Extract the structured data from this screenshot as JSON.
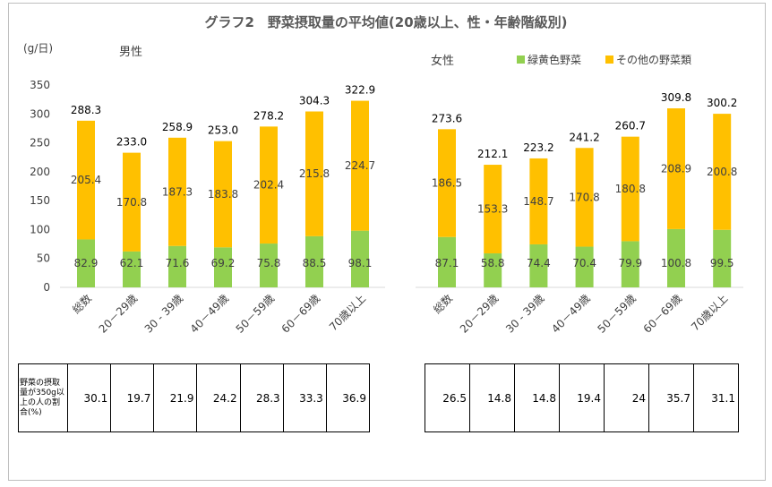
{
  "title": "グラフ2　野菜摂取量の平均値(20歳以上、性・年齢階級別)",
  "yunit": "(g/日)",
  "legend": {
    "green": "緑黄色野菜",
    "orange": "その他の野菜類"
  },
  "colors": {
    "green": "#92d050",
    "orange": "#ffc000",
    "axis": "#d9d9d9",
    "text": "#404040"
  },
  "table_header": "野菜の摂取量が350g以上の人の割合(%)",
  "chart_data": [
    {
      "type": "bar",
      "stacked": true,
      "panel_label": "男性",
      "categories": [
        "総数",
        "20－29歳",
        "30 - 39歳",
        "40－49歳",
        "50－59歳",
        "60－69歳",
        "70歳以上"
      ],
      "series": [
        {
          "name": "緑黄色野菜",
          "values": [
            82.9,
            62.1,
            71.6,
            69.2,
            75.8,
            88.5,
            98.1
          ]
        },
        {
          "name": "その他の野菜類",
          "values": [
            205.4,
            170.8,
            187.3,
            183.8,
            202.4,
            215.8,
            224.7
          ]
        }
      ],
      "totals": [
        288.3,
        233.0,
        258.9,
        253.0,
        278.2,
        304.3,
        322.9
      ],
      "ylim": [
        0,
        350
      ],
      "yticks": [
        0,
        50,
        100,
        150,
        200,
        250,
        300,
        350
      ],
      "pct_350g_or_more": [
        "30.1",
        "19.7",
        "21.9",
        "24.2",
        "28.3",
        "33.3",
        "36.9"
      ]
    },
    {
      "type": "bar",
      "stacked": true,
      "panel_label": "女性",
      "categories": [
        "総数",
        "20－29歳",
        "30 - 39歳",
        "40－49歳",
        "50－59歳",
        "60－69歳",
        "70歳以上"
      ],
      "series": [
        {
          "name": "緑黄色野菜",
          "values": [
            87.1,
            58.8,
            74.4,
            70.4,
            79.9,
            100.8,
            99.5
          ]
        },
        {
          "name": "その他の野菜類",
          "values": [
            186.5,
            153.3,
            148.7,
            170.8,
            180.8,
            208.9,
            200.8
          ]
        }
      ],
      "totals": [
        273.6,
        212.1,
        223.2,
        241.2,
        260.7,
        309.8,
        300.2
      ],
      "ylim": [
        0,
        350
      ],
      "pct_350g_or_more": [
        "26.5",
        "14.8",
        "14.8",
        "19.4",
        "24",
        "35.7",
        "31.1"
      ]
    }
  ]
}
